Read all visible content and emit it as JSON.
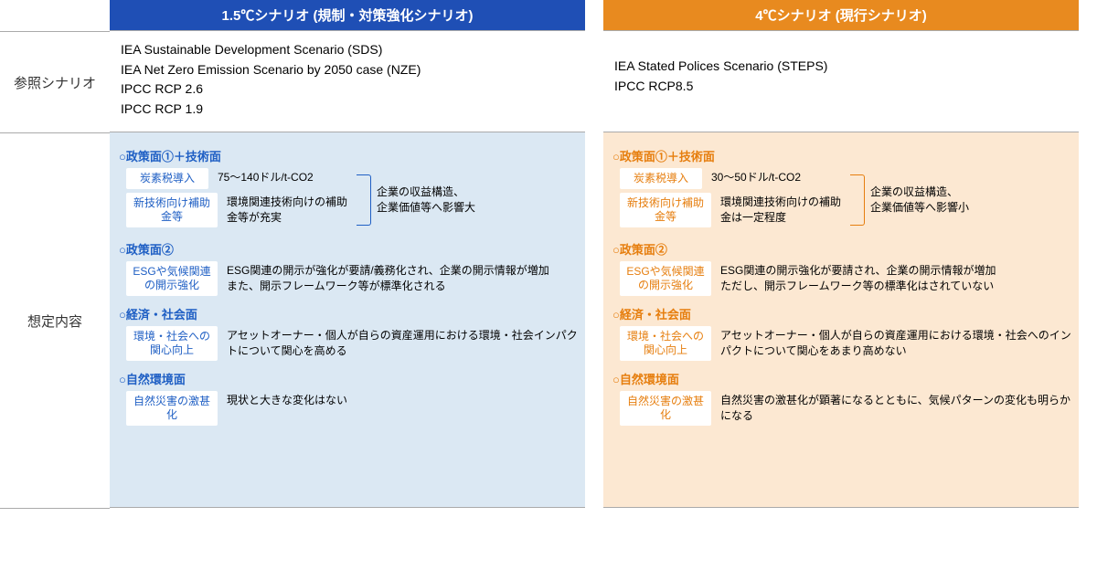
{
  "rowLabels": {
    "reference": "参照シナリオ",
    "assumptions": "想定内容"
  },
  "colors": {
    "blueHeader": "#1f4fb5",
    "blueBg": "#dbe8f3",
    "blueText": "#1f5fc4",
    "orangeHeader": "#e88a1f",
    "orangeBg": "#fce8d2",
    "orangeText": "#e67e0e"
  },
  "scenarios": {
    "s15": {
      "header": "1.5℃シナリオ (規制・対策強化シナリオ)",
      "reference": [
        "IEA Sustainable Development Scenario (SDS)",
        "IEA Net Zero Emission Scenario by 2050 case (NZE)",
        "IPCC RCP 2.6",
        "IPCC RCP 1.9"
      ],
      "sections": {
        "policy1": {
          "title": "○政策面①＋技術面",
          "items": [
            {
              "label": "炭素税導入",
              "desc": "75～140ドル/t-CO2"
            },
            {
              "label": "新技術向け補助金等",
              "desc": "環境関連技術向けの補助金等が充実"
            }
          ],
          "bracketText": "企業の収益構造、企業価値等へ影響大"
        },
        "policy2": {
          "title": "○政策面②",
          "items": [
            {
              "label": "ESGや気候関連の開示強化",
              "desc": "ESG関連の開示が強化が要請/義務化され、企業の開示情報が増加\nまた、開示フレームワーク等が標準化される"
            }
          ]
        },
        "econ": {
          "title": "○経済・社会面",
          "items": [
            {
              "label": "環境・社会への関心向上",
              "desc": "アセットオーナー・個人が自らの資産運用における環境・社会インパクトについて関心を高める"
            }
          ]
        },
        "nature": {
          "title": "○自然環境面",
          "items": [
            {
              "label": "自然災害の激甚化",
              "desc": "現状と大きな変化はない"
            }
          ]
        }
      }
    },
    "s4": {
      "header": "4℃シナリオ (現行シナリオ)",
      "reference": [
        "IEA Stated Polices Scenario (STEPS)",
        "IPCC RCP8.5"
      ],
      "sections": {
        "policy1": {
          "title": "○政策面①＋技術面",
          "items": [
            {
              "label": "炭素税導入",
              "desc": "30～50ドル/t-CO2"
            },
            {
              "label": "新技術向け補助金等",
              "desc": "環境関連技術向けの補助金は一定程度"
            }
          ],
          "bracketText": "企業の収益構造、企業価値等へ影響小"
        },
        "policy2": {
          "title": "○政策面②",
          "items": [
            {
              "label": "ESGや気候関連の開示強化",
              "desc": "ESG関連の開示強化が要請され、企業の開示情報が増加\nただし、開示フレームワーク等の標準化はされていない"
            }
          ]
        },
        "econ": {
          "title": "○経済・社会面",
          "items": [
            {
              "label": "環境・社会への関心向上",
              "desc": "アセットオーナー・個人が自らの資産運用における環境・社会へのインパクトについて関心をあまり高めない"
            }
          ]
        },
        "nature": {
          "title": "○自然環境面",
          "items": [
            {
              "label": "自然災害の激甚化",
              "desc": "自然災害の激甚化が顕著になるとともに、気候パターンの変化も明らかになる"
            }
          ]
        }
      }
    }
  }
}
